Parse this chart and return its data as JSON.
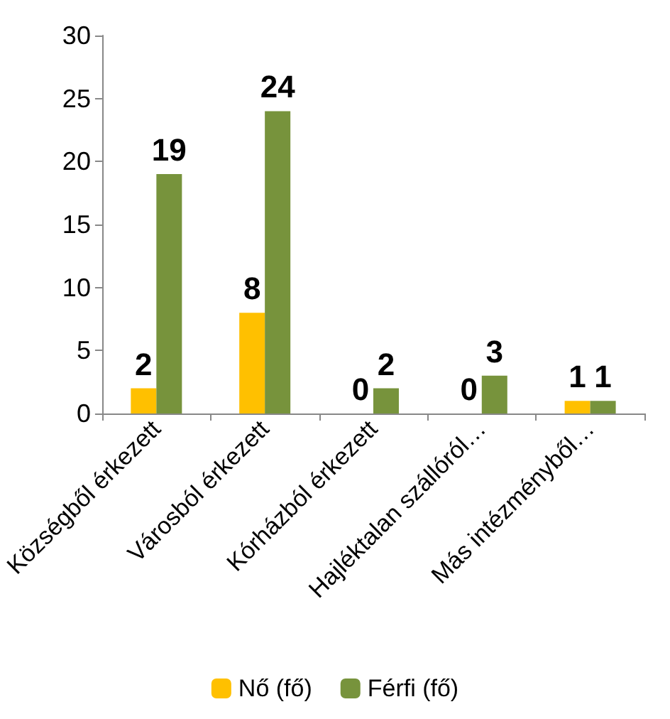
{
  "chart_data": {
    "type": "bar",
    "categories": [
      "Községből érkezett",
      "Városból érkezett",
      "Kórházból érkezett",
      "Hajléktalan szállóról…",
      "Más intézményből…"
    ],
    "series": [
      {
        "name": "Nő (fő)",
        "color": "#ffc000",
        "values": [
          2,
          8,
          0,
          0,
          1
        ]
      },
      {
        "name": "Férfi (fő)",
        "color": "#77933c",
        "values": [
          19,
          24,
          2,
          3,
          1
        ]
      }
    ],
    "ylim": [
      0,
      30
    ],
    "yticks": [
      0,
      5,
      10,
      15,
      20,
      25,
      30
    ],
    "grid": false,
    "legend": "bottom",
    "data_labels": true
  }
}
